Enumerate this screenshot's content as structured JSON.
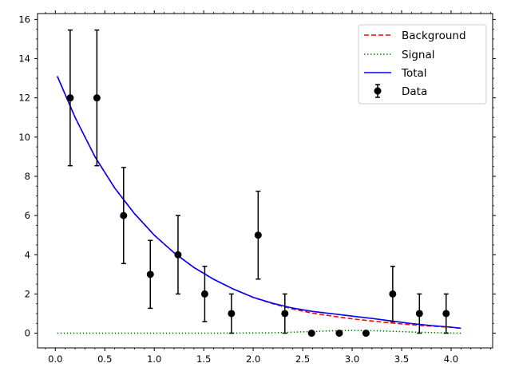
{
  "chart_data": {
    "type": "scatter",
    "title": "",
    "xlabel": "",
    "ylabel": "",
    "xlim": [
      -0.18,
      4.42
    ],
    "ylim": [
      -0.75,
      16.3
    ],
    "xticks": [
      0.0,
      0.5,
      1.0,
      1.5,
      2.0,
      2.5,
      3.0,
      3.5,
      4.0
    ],
    "xtick_labels": [
      "0.0",
      "0.5",
      "1.0",
      "1.5",
      "2.0",
      "2.5",
      "3.0",
      "3.5",
      "4.0"
    ],
    "yticks": [
      0,
      2,
      4,
      6,
      8,
      10,
      12,
      14,
      16
    ],
    "ytick_labels": [
      "0",
      "2",
      "4",
      "6",
      "8",
      "10",
      "12",
      "14",
      "16"
    ],
    "minor_ticks": true,
    "grid": false,
    "legend_position": "top-right",
    "series": [
      {
        "name": "Background",
        "kind": "line",
        "style": "dashed",
        "color": "#ff0000",
        "x": [
          0.02,
          0.2,
          0.4,
          0.6,
          0.8,
          1.0,
          1.2,
          1.4,
          1.6,
          1.8,
          2.0,
          2.2,
          2.4,
          2.6,
          2.8,
          3.0,
          3.2,
          3.4,
          3.6,
          3.8,
          4.0,
          4.1
        ],
        "y": [
          13.1,
          11.0,
          9.0,
          7.4,
          6.1,
          5.0,
          4.1,
          3.35,
          2.75,
          2.25,
          1.82,
          1.5,
          1.23,
          1.02,
          0.87,
          0.73,
          0.62,
          0.52,
          0.43,
          0.36,
          0.3,
          0.25
        ]
      },
      {
        "name": "Signal",
        "kind": "line",
        "style": "dotted",
        "color": "#008000",
        "x": [
          0.02,
          0.5,
          1.0,
          1.5,
          2.0,
          2.2,
          2.4,
          2.6,
          2.8,
          3.0,
          3.2,
          3.4,
          3.6,
          3.8,
          4.0,
          4.1
        ],
        "y": [
          0.0,
          0.0,
          0.0,
          0.0,
          0.01,
          0.02,
          0.05,
          0.09,
          0.12,
          0.14,
          0.13,
          0.1,
          0.06,
          0.03,
          0.01,
          0.0
        ]
      },
      {
        "name": "Total",
        "kind": "line",
        "style": "solid",
        "color": "#0000ff",
        "x": [
          0.02,
          0.2,
          0.4,
          0.6,
          0.8,
          1.0,
          1.2,
          1.4,
          1.6,
          1.8,
          2.0,
          2.2,
          2.4,
          2.6,
          2.8,
          3.0,
          3.2,
          3.4,
          3.6,
          3.8,
          4.0,
          4.1
        ],
        "y": [
          13.1,
          11.0,
          9.0,
          7.4,
          6.1,
          5.0,
          4.1,
          3.35,
          2.75,
          2.25,
          1.83,
          1.52,
          1.28,
          1.11,
          0.99,
          0.87,
          0.75,
          0.62,
          0.49,
          0.39,
          0.31,
          0.25
        ]
      },
      {
        "name": "Data",
        "kind": "errorbar",
        "color": "#000000",
        "x": [
          0.15,
          0.42,
          0.69,
          0.96,
          1.24,
          1.51,
          1.78,
          2.05,
          2.32,
          2.59,
          2.87,
          3.14,
          3.41,
          3.68,
          3.95
        ],
        "y": [
          12,
          12,
          6,
          3,
          4,
          2,
          1,
          5,
          1,
          0,
          0,
          0,
          2,
          1,
          1
        ],
        "yerr": [
          3.46,
          3.46,
          2.45,
          1.73,
          2.0,
          1.41,
          1.0,
          2.24,
          1.0,
          0,
          0,
          0,
          1.41,
          1.0,
          1.0
        ]
      }
    ]
  }
}
